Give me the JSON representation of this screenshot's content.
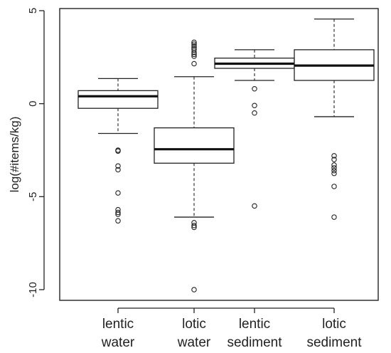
{
  "chart_data": {
    "type": "boxplot",
    "ylabel": "log(#items/kg)",
    "ylim": [
      -10.6,
      5.2
    ],
    "yticks": [
      5,
      0,
      -5,
      -10
    ],
    "ytick_labels": [
      "5",
      "0",
      "-5",
      "-10"
    ],
    "grid": false,
    "categories": [
      {
        "line1": "lentic",
        "line2": "water"
      },
      {
        "line1": "lotic",
        "line2": "water"
      },
      {
        "line1": "lentic",
        "line2": "sediment"
      },
      {
        "line1": "lotic",
        "line2": "sediment"
      }
    ],
    "boxes": [
      {
        "whisker_low": -1.6,
        "q1": -0.25,
        "median": 0.4,
        "q3": 0.7,
        "whisker_high": 1.35,
        "outliers": [
          -2.5,
          -2.55,
          -3.35,
          -3.55,
          -4.8,
          -5.7,
          -5.85,
          -5.95,
          -6.3
        ]
      },
      {
        "whisker_low": -6.1,
        "q1": -3.2,
        "median": -2.45,
        "q3": -1.3,
        "whisker_high": 1.45,
        "outliers": [
          2.15,
          2.55,
          2.65,
          2.75,
          2.9,
          3.0,
          3.1,
          3.2,
          3.3,
          -6.4,
          -6.55,
          -6.65,
          -10.0
        ]
      },
      {
        "whisker_low": 1.25,
        "q1": 1.9,
        "median": 2.15,
        "q3": 2.45,
        "whisker_high": 2.9,
        "outliers": [
          0.8,
          -0.1,
          -0.5,
          -5.5
        ]
      },
      {
        "whisker_low": -0.7,
        "q1": 1.25,
        "median": 2.05,
        "q3": 2.9,
        "whisker_high": 4.55,
        "outliers": [
          -2.8,
          -3.0,
          -3.3,
          -3.45,
          -3.6,
          -3.75,
          -4.45,
          -6.1
        ]
      }
    ]
  }
}
